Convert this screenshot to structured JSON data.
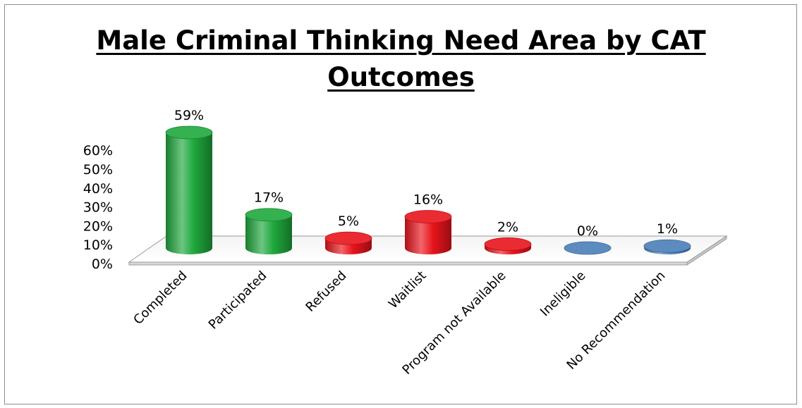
{
  "chart_data": {
    "type": "bar",
    "title_lines": [
      "Male Criminal Thinking Need Area by CAT",
      "Outcomes"
    ],
    "categories": [
      "Completed",
      "Participated",
      "Refused",
      "Waitlist",
      "Program not Available",
      "Ineligible",
      "No Recommendation"
    ],
    "values": [
      59,
      17,
      5,
      16,
      2,
      0,
      1
    ],
    "data_labels": [
      "59%",
      "17%",
      "5%",
      "16%",
      "2%",
      "0%",
      "1%"
    ],
    "colors": [
      "#1fa83c",
      "#1fa83c",
      "#e8141b",
      "#e8141b",
      "#e8141b",
      "#4a7fb8",
      "#4a7fb8"
    ],
    "y_ticks": [
      "0%",
      "10%",
      "20%",
      "30%",
      "40%",
      "50%",
      "60%"
    ],
    "ylim": [
      0,
      60
    ],
    "grid": false,
    "legend": "none"
  }
}
